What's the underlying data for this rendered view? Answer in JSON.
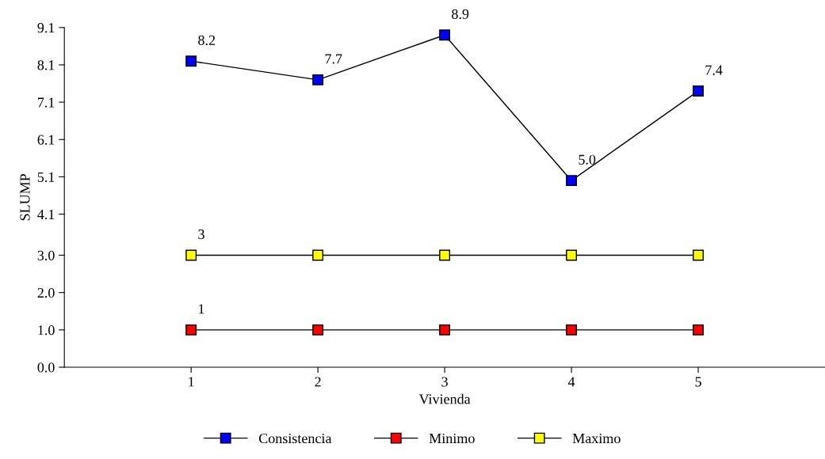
{
  "chart_data": {
    "type": "line",
    "xlabel": "Vivienda",
    "ylabel": "SLUMP",
    "x": [
      1,
      2,
      3,
      4,
      5
    ],
    "xlim": [
      0,
      6
    ],
    "xticks": [
      1,
      2,
      3,
      4,
      5
    ],
    "ylim": [
      0,
      9.1
    ],
    "yticks": [
      {
        "value": 0,
        "label": "0.0"
      },
      {
        "value": 1,
        "label": "1.0"
      },
      {
        "value": 2,
        "label": "2.0"
      },
      {
        "value": 3,
        "label": "3.0"
      },
      4.1,
      5.1,
      6.1,
      7.1,
      8.1,
      9.1
    ],
    "series": [
      {
        "name": "Consistencia",
        "color": "#0000ff",
        "values": [
          8.2,
          7.7,
          8.9,
          5.0,
          7.4
        ],
        "value_labels": [
          "8.2",
          "7.7",
          "8.9",
          "5.0",
          "7.4"
        ]
      },
      {
        "name": "Minimo",
        "color": "#ff0000",
        "values": [
          1,
          1,
          1,
          1,
          1
        ],
        "value_labels": [
          "1",
          null,
          null,
          null,
          null
        ]
      },
      {
        "name": "Maximo",
        "color": "#ffff00",
        "values": [
          3,
          3,
          3,
          3,
          3
        ],
        "value_labels": [
          "3",
          null,
          null,
          null,
          null
        ]
      }
    ],
    "marker": "square",
    "line_style": "solid",
    "grid": false,
    "legend": "bottom"
  }
}
